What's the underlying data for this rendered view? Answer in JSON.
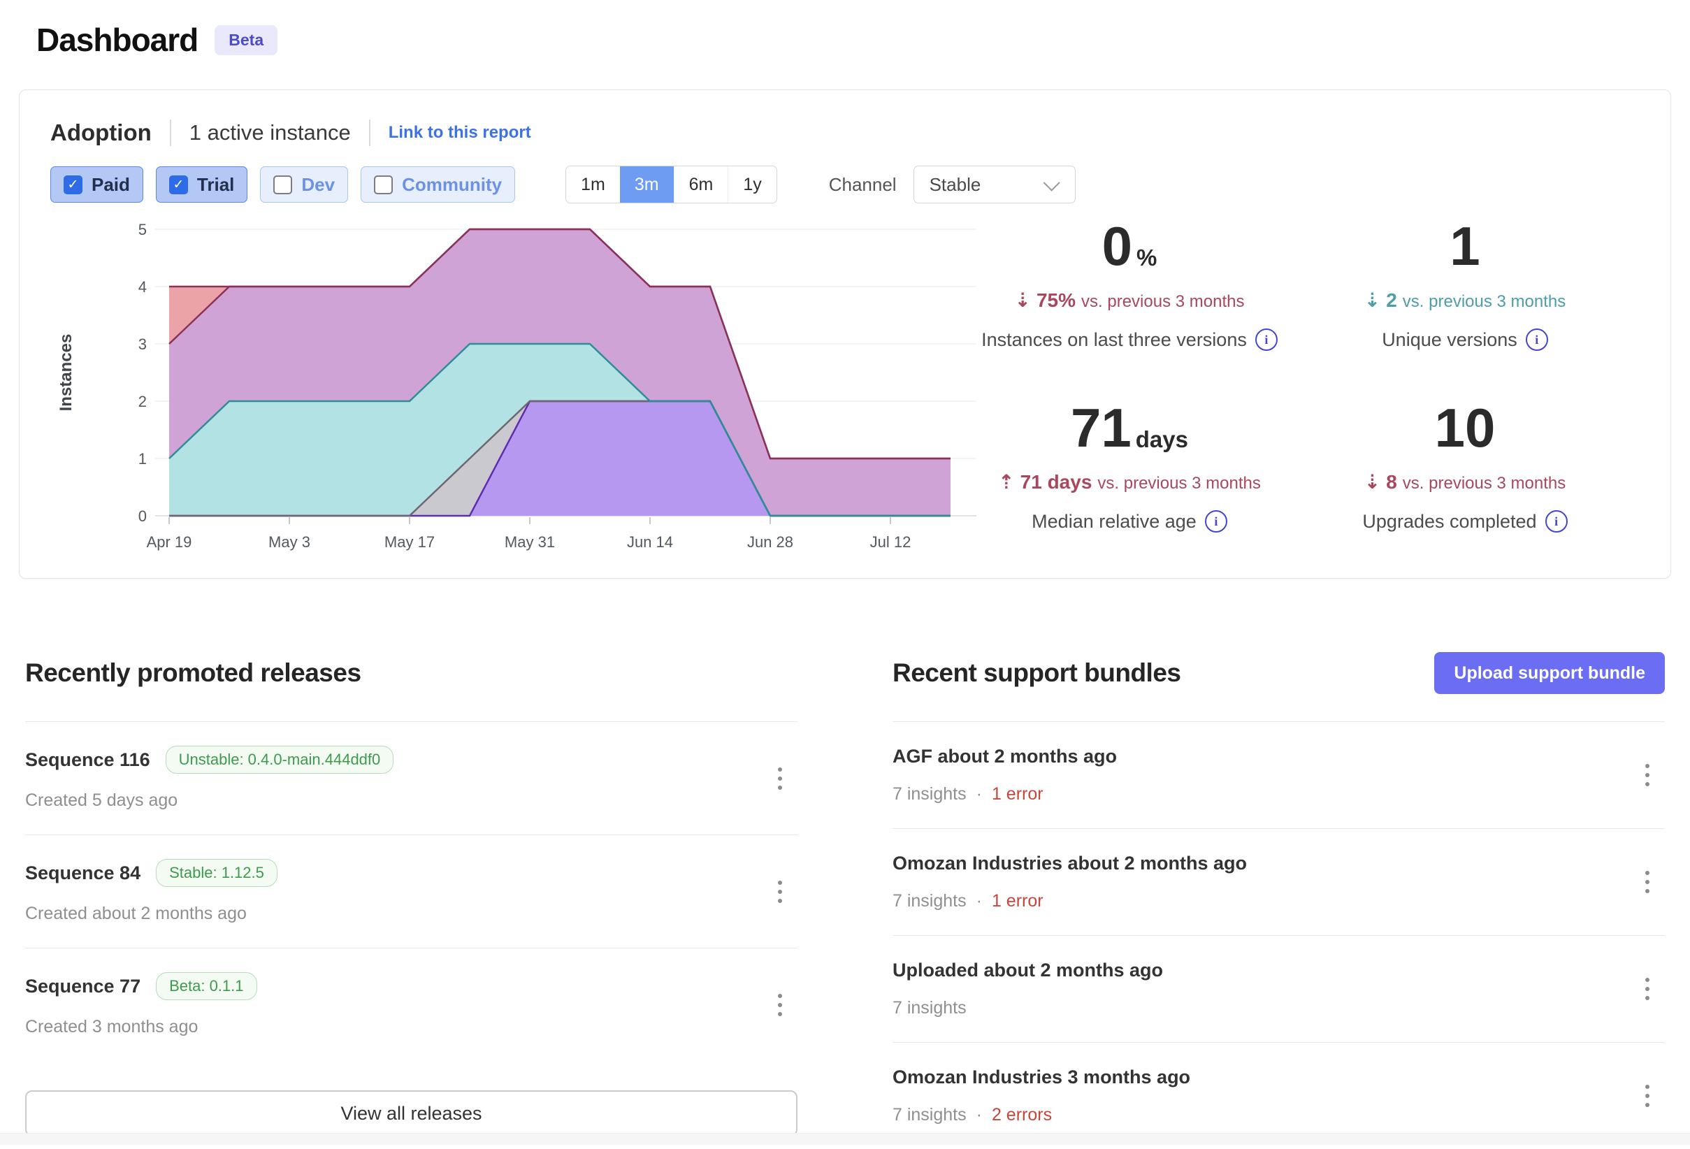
{
  "page": {
    "title": "Dashboard",
    "badge": "Beta"
  },
  "adoption": {
    "title": "Adoption",
    "subtitle": "1 active instance",
    "link_label": "Link to this report",
    "filters": [
      {
        "label": "Paid",
        "checked": true
      },
      {
        "label": "Trial",
        "checked": true
      },
      {
        "label": "Dev",
        "checked": false
      },
      {
        "label": "Community",
        "checked": false
      }
    ],
    "ranges": [
      {
        "label": "1m",
        "selected": false
      },
      {
        "label": "3m",
        "selected": true
      },
      {
        "label": "6m",
        "selected": false
      },
      {
        "label": "1y",
        "selected": false
      }
    ],
    "channel_label": "Channel",
    "channel_value": "Stable",
    "stats": [
      {
        "value": "0",
        "unit": "%",
        "direction": "down",
        "change": "75%",
        "suffix": "vs. previous 3 months",
        "label": "Instances on last three versions",
        "color": "#a8485f"
      },
      {
        "value": "1",
        "unit": "",
        "direction": "down",
        "change": "2",
        "suffix": "vs. previous 3 months",
        "label": "Unique versions",
        "color": "#4d9ea7"
      },
      {
        "value": "71",
        "unit": "days",
        "direction": "up",
        "change": "71 days",
        "suffix": "vs. previous 3 months",
        "label": "Median relative age",
        "color": "#a8485f"
      },
      {
        "value": "10",
        "unit": "",
        "direction": "down",
        "change": "8",
        "suffix": "vs. previous 3 months",
        "label": "Upgrades completed",
        "color": "#a8485f"
      }
    ]
  },
  "chart_data": {
    "type": "area",
    "stacked": true,
    "ylabel": "Instances",
    "ylim": [
      0,
      5
    ],
    "grid": true,
    "legend": "none",
    "x": [
      "Apr 19",
      "Apr 26",
      "May 3",
      "May 10",
      "May 17",
      "May 24",
      "May 31",
      "Jun 7",
      "Jun 14",
      "Jun 21",
      "Jun 28",
      "Jul 5",
      "Jul 12",
      "Jul 19"
    ],
    "x_tick_indices": [
      0,
      2,
      4,
      6,
      8,
      10,
      12
    ],
    "yticks": [
      0,
      1,
      2,
      3,
      4,
      5
    ],
    "series": [
      {
        "name": "series-purple",
        "fill": "#b18ff0",
        "stroke": "#5f2db0",
        "values": [
          0,
          0,
          0,
          0,
          0,
          0,
          2,
          2,
          2,
          2,
          0,
          0,
          0,
          0
        ]
      },
      {
        "name": "series-grey",
        "fill": "#c7c4cc",
        "stroke": "#6f6573",
        "values": [
          0,
          0,
          0,
          0,
          0,
          1,
          0,
          0,
          0,
          0,
          0,
          0,
          0,
          0
        ]
      },
      {
        "name": "series-teal",
        "fill": "#abdfe1",
        "stroke": "#2c8e96",
        "values": [
          1,
          2,
          2,
          2,
          2,
          2,
          1,
          1,
          0,
          0,
          0,
          0,
          0,
          0
        ]
      },
      {
        "name": "series-mauve",
        "fill": "#cc9bd2",
        "stroke": "#8c3158",
        "values": [
          2,
          2,
          2,
          2,
          2,
          2,
          2,
          2,
          2,
          2,
          1,
          1,
          1,
          1
        ]
      },
      {
        "name": "series-salmon",
        "fill": "#e99ba1",
        "stroke": "#8c3158",
        "values": [
          1,
          0,
          0,
          0,
          0,
          0,
          0,
          0,
          0,
          0,
          0,
          0,
          0,
          0
        ]
      }
    ]
  },
  "releases": {
    "heading": "Recently promoted releases",
    "view_all_label": "View all releases",
    "items": [
      {
        "title": "Sequence 116",
        "badge": "Unstable: 0.4.0-main.444ddf0",
        "created": "Created 5 days ago"
      },
      {
        "title": "Sequence 84",
        "badge": "Stable: 1.12.5",
        "created": "Created about 2 months ago"
      },
      {
        "title": "Sequence 77",
        "badge": "Beta: 0.1.1",
        "created": "Created 3 months ago"
      }
    ]
  },
  "bundles": {
    "heading": "Recent support bundles",
    "upload_label": "Upload support bundle",
    "separator": "·",
    "items": [
      {
        "title": "AGF about 2 months ago",
        "insights": "7 insights",
        "errors": "1 error"
      },
      {
        "title": "Omozan Industries about 2 months ago",
        "insights": "7 insights",
        "errors": "1 error"
      },
      {
        "title": "Uploaded about 2 months ago",
        "insights": "7 insights",
        "errors": ""
      },
      {
        "title": "Omozan Industries 3 months ago",
        "insights": "7 insights",
        "errors": "2 errors"
      }
    ]
  }
}
